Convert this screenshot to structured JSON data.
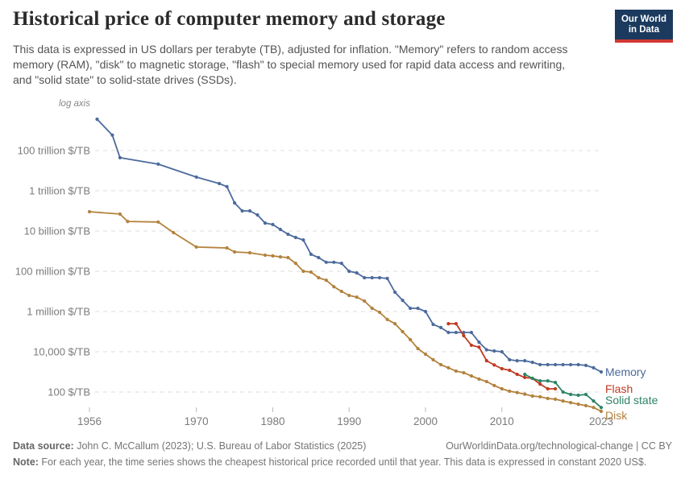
{
  "header": {
    "title": "Historical price of computer memory and storage",
    "subtitle_lines": [
      "This data is expressed in US dollars per terabyte (TB), adjusted for inflation. \"Memory\" refers to random access",
      "memory (RAM), \"disk\" to magnetic storage, \"flash\" to special memory used for rapid data access and rewriting,",
      "and \"solid state\" to solid-state drives (SSDs)."
    ],
    "logo_line1": "Our World",
    "logo_line2": "in Data"
  },
  "footer": {
    "data_source_label": "Data source:",
    "data_source_text": " John C. McCallum (2023); U.S. Bureau of Labor Statistics (2025)",
    "attribution": "OurWorldinData.org/technological-change | CC BY",
    "note_label": "Note:",
    "note_text": " For each year, the time series shows the cheapest historical price recorded until that year. This data is expressed in constant 2020 US$."
  },
  "chart_data": {
    "type": "line",
    "log_scale": true,
    "axis_note": "log axis",
    "unit": "$/TB",
    "x_range": [
      1956,
      2023
    ],
    "x_ticks": [
      1956,
      1970,
      1980,
      1990,
      2000,
      2010,
      2023
    ],
    "y_ticks": [
      {
        "label": "100 trillion $/TB",
        "value": 100000000000000.0
      },
      {
        "label": "1 trillion $/TB",
        "value": 1000000000000.0
      },
      {
        "label": "10 billion $/TB",
        "value": 10000000000.0
      },
      {
        "label": "100 million $/TB",
        "value": 100000000.0
      },
      {
        "label": "1 million $/TB",
        "value": 1000000.0
      },
      {
        "label": "10,000 $/TB",
        "value": 10000.0
      },
      {
        "label": "100 $/TB",
        "value": 100.0
      }
    ],
    "grid": true,
    "legend_position": "right-end-labels",
    "series": [
      {
        "name": "Memory",
        "color": "#4C6A9C",
        "label_baseline_y": 467,
        "points": [
          [
            1957,
            3600000000000000.0
          ],
          [
            1959,
            580000000000000.0
          ],
          [
            1960,
            44000000000000.0
          ],
          [
            1965,
            21000000000000.0
          ],
          [
            1970,
            4800000000000.0
          ],
          [
            1973,
            2300000000000.0
          ],
          [
            1974,
            1600000000000.0
          ],
          [
            1975,
            250000000000.0
          ],
          [
            1976,
            100000000000.0
          ],
          [
            1977,
            100000000000.0
          ],
          [
            1978,
            63000000000.0
          ],
          [
            1979,
            25000000000.0
          ],
          [
            1980,
            21000000000.0
          ],
          [
            1981,
            12000000000.0
          ],
          [
            1982,
            6900000000.0
          ],
          [
            1983,
            4800000000.0
          ],
          [
            1984,
            3600000000.0
          ],
          [
            1985,
            700000000.0
          ],
          [
            1986,
            480000000.0
          ],
          [
            1987,
            280000000.0
          ],
          [
            1988,
            280000000.0
          ],
          [
            1989,
            250000000.0
          ],
          [
            1990,
            100000000.0
          ],
          [
            1991,
            83000000.0
          ],
          [
            1992,
            48000000.0
          ],
          [
            1993,
            48000000.0
          ],
          [
            1994,
            48000000.0
          ],
          [
            1995,
            44000000.0
          ],
          [
            1996,
            9100000.0
          ],
          [
            1997,
            3600000.0
          ],
          [
            1998,
            1450000.0
          ],
          [
            1999,
            1450000.0
          ],
          [
            2000,
            1000000.0
          ],
          [
            2001,
            230000.0
          ],
          [
            2002,
            160000.0
          ],
          [
            2003,
            91000.0
          ],
          [
            2004,
            91000.0
          ],
          [
            2005,
            91000.0
          ],
          [
            2006,
            91000.0
          ],
          [
            2007,
            30000.0
          ],
          [
            2008,
            12600.0
          ],
          [
            2009,
            11000.0
          ],
          [
            2010,
            10000.0
          ],
          [
            2011,
            4000.0
          ],
          [
            2012,
            3600.0
          ],
          [
            2013,
            3600.0
          ],
          [
            2014,
            3000.0
          ],
          [
            2015,
            2300.0
          ],
          [
            2016,
            2300.0
          ],
          [
            2017,
            2300.0
          ],
          [
            2018,
            2300.0
          ],
          [
            2019,
            2300.0
          ],
          [
            2020,
            2300.0
          ],
          [
            2021,
            2100.0
          ],
          [
            2022,
            1600.0
          ],
          [
            2023,
            1000.0
          ]
        ]
      },
      {
        "name": "Disk",
        "color": "#B3823C",
        "label_baseline_y": 521,
        "points": [
          [
            1956,
            91000000000.0
          ],
          [
            1960,
            70000000000.0
          ],
          [
            1961,
            30000000000.0
          ],
          [
            1965,
            28000000000.0
          ],
          [
            1967,
            8300000000.0
          ],
          [
            1970,
            1600000000.0
          ],
          [
            1974,
            1450000000.0
          ],
          [
            1975,
            910000000.0
          ],
          [
            1977,
            830000000.0
          ],
          [
            1979,
            630000000.0
          ],
          [
            1980,
            580000000.0
          ],
          [
            1981,
            520000000.0
          ],
          [
            1982,
            480000000.0
          ],
          [
            1983,
            250000000.0
          ],
          [
            1984,
            100000000.0
          ],
          [
            1985,
            91000000.0
          ],
          [
            1986,
            48000000.0
          ],
          [
            1987,
            36000000.0
          ],
          [
            1988,
            17000000.0
          ],
          [
            1989,
            10000000.0
          ],
          [
            1990,
            6300000.0
          ],
          [
            1991,
            5200000.0
          ],
          [
            1992,
            3300000.0
          ],
          [
            1993,
            1450000.0
          ],
          [
            1994,
            910000.0
          ],
          [
            1995,
            400000.0
          ],
          [
            1996,
            250000.0
          ],
          [
            1997,
            100000.0
          ],
          [
            1998,
            40000.0
          ],
          [
            1999,
            14500.0
          ],
          [
            2000,
            7600.0
          ],
          [
            2001,
            4000.0
          ],
          [
            2002,
            2300.0
          ],
          [
            2003,
            1600.0
          ],
          [
            2004,
            1100.0
          ],
          [
            2005,
            910.0
          ],
          [
            2006,
            630.0
          ],
          [
            2007,
            440.0
          ],
          [
            2008,
            330.0
          ],
          [
            2009,
            210.0
          ],
          [
            2010,
            145.0
          ],
          [
            2011,
            110.0
          ],
          [
            2012,
            95
          ],
          [
            2013,
            79
          ],
          [
            2014,
            63
          ],
          [
            2015,
            58
          ],
          [
            2016,
            48
          ],
          [
            2017,
            44
          ],
          [
            2018,
            36
          ],
          [
            2019,
            30
          ],
          [
            2020,
            25
          ],
          [
            2021,
            21
          ],
          [
            2022,
            17
          ],
          [
            2023,
            11
          ]
        ]
      },
      {
        "name": "Flash",
        "color": "#C03A21",
        "label_baseline_y": 488,
        "points": [
          [
            2003,
            250000.0
          ],
          [
            2004,
            250000.0
          ],
          [
            2005,
            63000.0
          ],
          [
            2006,
            21000.0
          ],
          [
            2007,
            17000.0
          ],
          [
            2008,
            3600.0
          ],
          [
            2009,
            2200.0
          ],
          [
            2010,
            1450.0
          ],
          [
            2011,
            1200.0
          ],
          [
            2012,
            760.0
          ],
          [
            2013,
            530.0
          ],
          [
            2014,
            480.0
          ],
          [
            2015,
            250.0
          ],
          [
            2016,
            145.0
          ],
          [
            2017,
            145.0
          ]
        ]
      },
      {
        "name": "Solid state",
        "color": "#2C8465",
        "label_baseline_y": 502,
        "points": [
          [
            2013,
            760.0
          ],
          [
            2014,
            480.0
          ],
          [
            2015,
            360.0
          ],
          [
            2016,
            360.0
          ],
          [
            2017,
            300.0
          ],
          [
            2018,
            100.0
          ],
          [
            2019,
            76
          ],
          [
            2020,
            69
          ],
          [
            2021,
            76
          ],
          [
            2022,
            36
          ],
          [
            2023,
            17
          ]
        ]
      }
    ]
  }
}
